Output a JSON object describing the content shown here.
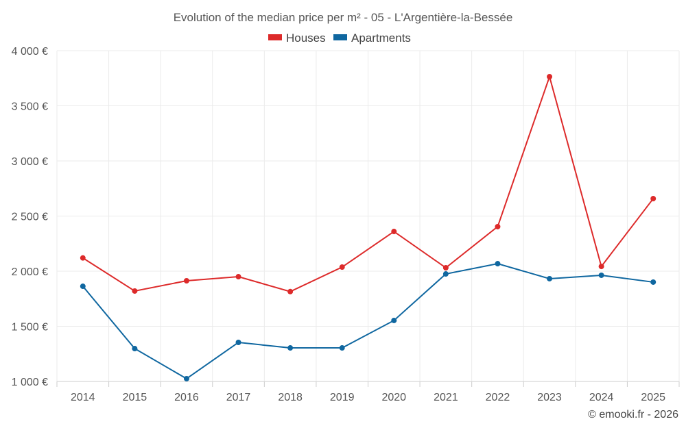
{
  "chart_data": {
    "type": "line",
    "title": "Evolution of the median price per m² - 05 - L'Argentière-la-Bessée",
    "xlabel": "",
    "ylabel": "",
    "categories": [
      "2014",
      "2015",
      "2016",
      "2017",
      "2018",
      "2019",
      "2020",
      "2021",
      "2022",
      "2023",
      "2024",
      "2025"
    ],
    "ylim": [
      1000,
      4000
    ],
    "yticks": [
      1000,
      1500,
      2000,
      2500,
      3000,
      3500,
      4000
    ],
    "ytick_labels": [
      "1 000 €",
      "1 500 €",
      "2 000 €",
      "2 500 €",
      "3 000 €",
      "3 500 €",
      "4 000 €"
    ],
    "grid": true,
    "legend_position": "top-center",
    "series": [
      {
        "name": "Houses",
        "color": "#dd2a2a",
        "values": [
          2120,
          1820,
          1913,
          1950,
          1815,
          2037,
          2360,
          2031,
          2404,
          3764,
          2043,
          2658
        ]
      },
      {
        "name": "Apartments",
        "color": "#0f67a0",
        "values": [
          1863,
          1298,
          1025,
          1354,
          1304,
          1304,
          1553,
          1975,
          2068,
          1932,
          1963,
          1901
        ]
      }
    ],
    "credit": "© emooki.fr - 2026"
  }
}
